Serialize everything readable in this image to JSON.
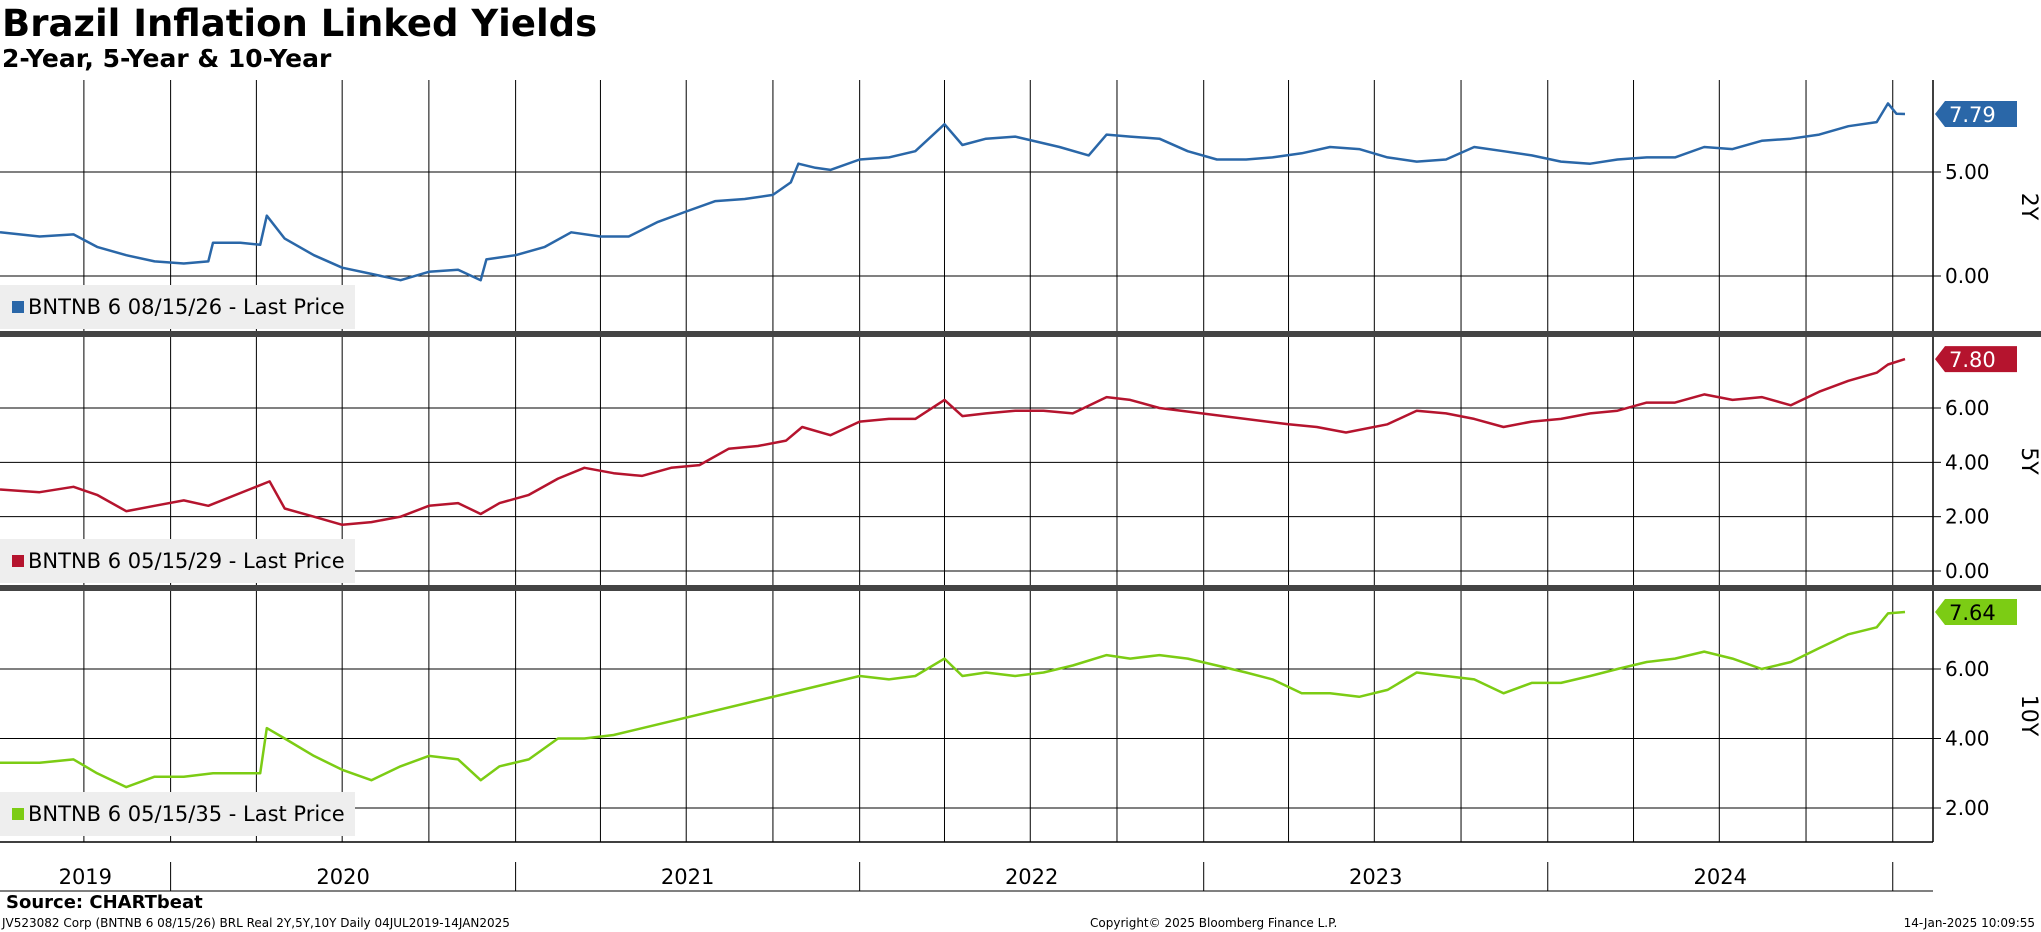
{
  "header": {
    "title": "Brazil Inflation Linked Yields",
    "subtitle": "2-Year, 5-Year & 10-Year"
  },
  "footer": {
    "source": "Source: CHARTbeat",
    "info": "JV523082 Corp (BNTNB 6 08/15/26) BRL Real 2Y,5Y,10Y  Daily 04JUL2019-14JAN2025",
    "copyright": "Copyright© 2025 Bloomberg Finance L.P.",
    "timestamp": "14-Jan-2025 10:09:55"
  },
  "colors": {
    "2Y": "#2a67a8",
    "5Y": "#b5142e",
    "10Y": "#7ccc14",
    "grid": "#000000",
    "legend_bg": "#eeeeee"
  },
  "chart_data": {
    "type": "line",
    "x_axis": {
      "years": [
        "2019",
        "2020",
        "2021",
        "2022",
        "2023",
        "2024"
      ],
      "range": [
        "2019-07-04",
        "2025-01-14"
      ]
    },
    "panels": [
      {
        "name": "2Y",
        "legend": "BNTNB 6 08/15/26 - Last Price",
        "last_value": "7.79",
        "y_ticks": [
          "0.00",
          "5.00"
        ],
        "series": [
          {
            "date": "2019-07-04",
            "value": 2.1
          },
          {
            "date": "2019-08-15",
            "value": 1.9
          },
          {
            "date": "2019-09-20",
            "value": 2.0
          },
          {
            "date": "2019-10-15",
            "value": 1.4
          },
          {
            "date": "2019-11-15",
            "value": 1.0
          },
          {
            "date": "2019-12-15",
            "value": 0.7
          },
          {
            "date": "2020-01-15",
            "value": 0.6
          },
          {
            "date": "2020-02-10",
            "value": 0.7
          },
          {
            "date": "2020-02-15",
            "value": 1.6
          },
          {
            "date": "2020-03-15",
            "value": 1.6
          },
          {
            "date": "2020-04-05",
            "value": 1.5
          },
          {
            "date": "2020-04-12",
            "value": 2.9
          },
          {
            "date": "2020-05-01",
            "value": 1.8
          },
          {
            "date": "2020-06-01",
            "value": 1.0
          },
          {
            "date": "2020-07-01",
            "value": 0.4
          },
          {
            "date": "2020-08-01",
            "value": 0.1
          },
          {
            "date": "2020-09-01",
            "value": -0.2
          },
          {
            "date": "2020-10-01",
            "value": 0.2
          },
          {
            "date": "2020-11-01",
            "value": 0.3
          },
          {
            "date": "2020-11-25",
            "value": -0.2
          },
          {
            "date": "2020-12-01",
            "value": 0.8
          },
          {
            "date": "2021-01-01",
            "value": 1.0
          },
          {
            "date": "2021-02-01",
            "value": 1.4
          },
          {
            "date": "2021-03-01",
            "value": 2.1
          },
          {
            "date": "2021-04-01",
            "value": 1.9
          },
          {
            "date": "2021-05-01",
            "value": 1.9
          },
          {
            "date": "2021-06-01",
            "value": 2.6
          },
          {
            "date": "2021-07-01",
            "value": 3.1
          },
          {
            "date": "2021-08-01",
            "value": 3.6
          },
          {
            "date": "2021-09-01",
            "value": 3.7
          },
          {
            "date": "2021-10-01",
            "value": 3.9
          },
          {
            "date": "2021-10-20",
            "value": 4.5
          },
          {
            "date": "2021-10-28",
            "value": 5.4
          },
          {
            "date": "2021-11-15",
            "value": 5.2
          },
          {
            "date": "2021-12-01",
            "value": 5.1
          },
          {
            "date": "2022-01-01",
            "value": 5.6
          },
          {
            "date": "2022-02-01",
            "value": 5.7
          },
          {
            "date": "2022-03-01",
            "value": 6.0
          },
          {
            "date": "2022-04-01",
            "value": 7.3
          },
          {
            "date": "2022-04-20",
            "value": 6.3
          },
          {
            "date": "2022-05-15",
            "value": 6.6
          },
          {
            "date": "2022-06-15",
            "value": 6.7
          },
          {
            "date": "2022-08-01",
            "value": 6.2
          },
          {
            "date": "2022-09-01",
            "value": 5.8
          },
          {
            "date": "2022-09-20",
            "value": 6.8
          },
          {
            "date": "2022-10-15",
            "value": 6.7
          },
          {
            "date": "2022-11-15",
            "value": 6.6
          },
          {
            "date": "2022-12-15",
            "value": 6.0
          },
          {
            "date": "2023-01-15",
            "value": 5.6
          },
          {
            "date": "2023-02-15",
            "value": 5.6
          },
          {
            "date": "2023-03-15",
            "value": 5.7
          },
          {
            "date": "2023-04-15",
            "value": 5.9
          },
          {
            "date": "2023-05-15",
            "value": 6.2
          },
          {
            "date": "2023-06-15",
            "value": 6.1
          },
          {
            "date": "2023-07-15",
            "value": 5.7
          },
          {
            "date": "2023-08-15",
            "value": 5.5
          },
          {
            "date": "2023-09-15",
            "value": 5.6
          },
          {
            "date": "2023-10-15",
            "value": 6.2
          },
          {
            "date": "2023-11-15",
            "value": 6.0
          },
          {
            "date": "2023-12-15",
            "value": 5.8
          },
          {
            "date": "2024-01-15",
            "value": 5.5
          },
          {
            "date": "2024-02-15",
            "value": 5.4
          },
          {
            "date": "2024-03-15",
            "value": 5.6
          },
          {
            "date": "2024-04-15",
            "value": 5.7
          },
          {
            "date": "2024-05-15",
            "value": 5.7
          },
          {
            "date": "2024-06-15",
            "value": 6.2
          },
          {
            "date": "2024-07-15",
            "value": 6.1
          },
          {
            "date": "2024-08-15",
            "value": 6.5
          },
          {
            "date": "2024-09-15",
            "value": 6.6
          },
          {
            "date": "2024-10-15",
            "value": 6.8
          },
          {
            "date": "2024-11-15",
            "value": 7.2
          },
          {
            "date": "2024-12-15",
            "value": 7.4
          },
          {
            "date": "2024-12-27",
            "value": 8.3
          },
          {
            "date": "2025-01-05",
            "value": 7.8
          },
          {
            "date": "2025-01-14",
            "value": 7.79
          }
        ]
      },
      {
        "name": "5Y",
        "legend": "BNTNB 6 05/15/29 - Last Price",
        "last_value": "7.80",
        "y_ticks": [
          "0.00",
          "2.00",
          "4.00",
          "6.00"
        ],
        "series": [
          {
            "date": "2019-07-04",
            "value": 3.0
          },
          {
            "date": "2019-08-15",
            "value": 2.9
          },
          {
            "date": "2019-09-20",
            "value": 3.1
          },
          {
            "date": "2019-10-15",
            "value": 2.8
          },
          {
            "date": "2019-11-15",
            "value": 2.2
          },
          {
            "date": "2019-12-15",
            "value": 2.4
          },
          {
            "date": "2020-01-15",
            "value": 2.6
          },
          {
            "date": "2020-02-10",
            "value": 2.4
          },
          {
            "date": "2020-04-15",
            "value": 3.3
          },
          {
            "date": "2020-05-01",
            "value": 2.3
          },
          {
            "date": "2020-06-01",
            "value": 2.0
          },
          {
            "date": "2020-07-01",
            "value": 1.7
          },
          {
            "date": "2020-08-01",
            "value": 1.8
          },
          {
            "date": "2020-09-01",
            "value": 2.0
          },
          {
            "date": "2020-10-01",
            "value": 2.4
          },
          {
            "date": "2020-11-01",
            "value": 2.5
          },
          {
            "date": "2020-11-25",
            "value": 2.1
          },
          {
            "date": "2020-12-15",
            "value": 2.5
          },
          {
            "date": "2021-01-15",
            "value": 2.8
          },
          {
            "date": "2021-02-15",
            "value": 3.4
          },
          {
            "date": "2021-03-15",
            "value": 3.8
          },
          {
            "date": "2021-04-15",
            "value": 3.6
          },
          {
            "date": "2021-05-15",
            "value": 3.5
          },
          {
            "date": "2021-06-15",
            "value": 3.8
          },
          {
            "date": "2021-07-15",
            "value": 3.9
          },
          {
            "date": "2021-08-15",
            "value": 4.5
          },
          {
            "date": "2021-09-15",
            "value": 4.6
          },
          {
            "date": "2021-10-15",
            "value": 4.8
          },
          {
            "date": "2021-11-01",
            "value": 5.3
          },
          {
            "date": "2021-12-01",
            "value": 5.0
          },
          {
            "date": "2022-01-01",
            "value": 5.5
          },
          {
            "date": "2022-02-01",
            "value": 5.6
          },
          {
            "date": "2022-03-01",
            "value": 5.6
          },
          {
            "date": "2022-04-01",
            "value": 6.3
          },
          {
            "date": "2022-04-20",
            "value": 5.7
          },
          {
            "date": "2022-05-15",
            "value": 5.8
          },
          {
            "date": "2022-06-15",
            "value": 5.9
          },
          {
            "date": "2022-07-15",
            "value": 5.9
          },
          {
            "date": "2022-08-15",
            "value": 5.8
          },
          {
            "date": "2022-09-20",
            "value": 6.4
          },
          {
            "date": "2022-10-15",
            "value": 6.3
          },
          {
            "date": "2022-11-15",
            "value": 6.0
          },
          {
            "date": "2023-04-01",
            "value": 5.4
          },
          {
            "date": "2023-05-01",
            "value": 5.3
          },
          {
            "date": "2023-06-01",
            "value": 5.1
          },
          {
            "date": "2023-07-15",
            "value": 5.4
          },
          {
            "date": "2023-08-15",
            "value": 5.9
          },
          {
            "date": "2023-09-15",
            "value": 5.8
          },
          {
            "date": "2023-10-15",
            "value": 5.6
          },
          {
            "date": "2023-11-15",
            "value": 5.3
          },
          {
            "date": "2023-12-15",
            "value": 5.5
          },
          {
            "date": "2024-01-15",
            "value": 5.6
          },
          {
            "date": "2024-02-15",
            "value": 5.8
          },
          {
            "date": "2024-03-15",
            "value": 5.9
          },
          {
            "date": "2024-04-15",
            "value": 6.2
          },
          {
            "date": "2024-05-15",
            "value": 6.2
          },
          {
            "date": "2024-06-15",
            "value": 6.5
          },
          {
            "date": "2024-07-15",
            "value": 6.3
          },
          {
            "date": "2024-08-15",
            "value": 6.4
          },
          {
            "date": "2024-09-15",
            "value": 6.1
          },
          {
            "date": "2024-10-15",
            "value": 6.6
          },
          {
            "date": "2024-11-15",
            "value": 7.0
          },
          {
            "date": "2024-12-15",
            "value": 7.3
          },
          {
            "date": "2024-12-27",
            "value": 7.6
          },
          {
            "date": "2025-01-14",
            "value": 7.8
          }
        ]
      },
      {
        "name": "10Y",
        "legend": "BNTNB 6 05/15/35 - Last Price",
        "last_value": "7.64",
        "y_ticks": [
          "2.00",
          "4.00",
          "6.00"
        ],
        "series": [
          {
            "date": "2019-07-04",
            "value": 3.3
          },
          {
            "date": "2019-08-15",
            "value": 3.3
          },
          {
            "date": "2019-09-20",
            "value": 3.4
          },
          {
            "date": "2019-10-15",
            "value": 3.0
          },
          {
            "date": "2019-11-15",
            "value": 2.6
          },
          {
            "date": "2019-12-15",
            "value": 2.9
          },
          {
            "date": "2020-01-15",
            "value": 2.9
          },
          {
            "date": "2020-02-15",
            "value": 3.0
          },
          {
            "date": "2020-03-15",
            "value": 3.0
          },
          {
            "date": "2020-04-05",
            "value": 3.0
          },
          {
            "date": "2020-04-12",
            "value": 4.3
          },
          {
            "date": "2020-05-01",
            "value": 4.0
          },
          {
            "date": "2020-06-01",
            "value": 3.5
          },
          {
            "date": "2020-07-01",
            "value": 3.1
          },
          {
            "date": "2020-08-01",
            "value": 2.8
          },
          {
            "date": "2020-09-01",
            "value": 3.2
          },
          {
            "date": "2020-10-01",
            "value": 3.5
          },
          {
            "date": "2020-11-01",
            "value": 3.4
          },
          {
            "date": "2020-11-25",
            "value": 2.8
          },
          {
            "date": "2020-12-15",
            "value": 3.2
          },
          {
            "date": "2021-01-15",
            "value": 3.4
          },
          {
            "date": "2021-02-15",
            "value": 4.0
          },
          {
            "date": "2021-03-15",
            "value": 4.0
          },
          {
            "date": "2021-04-15",
            "value": 4.1
          },
          {
            "date": "2022-01-01",
            "value": 5.8
          },
          {
            "date": "2022-02-01",
            "value": 5.7
          },
          {
            "date": "2022-03-01",
            "value": 5.8
          },
          {
            "date": "2022-04-01",
            "value": 6.3
          },
          {
            "date": "2022-04-20",
            "value": 5.8
          },
          {
            "date": "2022-05-15",
            "value": 5.9
          },
          {
            "date": "2022-06-15",
            "value": 5.8
          },
          {
            "date": "2022-07-15",
            "value": 5.9
          },
          {
            "date": "2022-08-15",
            "value": 6.1
          },
          {
            "date": "2022-09-20",
            "value": 6.4
          },
          {
            "date": "2022-10-15",
            "value": 6.3
          },
          {
            "date": "2022-11-15",
            "value": 6.4
          },
          {
            "date": "2022-12-15",
            "value": 6.3
          },
          {
            "date": "2023-01-15",
            "value": 6.1
          },
          {
            "date": "2023-02-15",
            "value": 5.9
          },
          {
            "date": "2023-03-15",
            "value": 5.7
          },
          {
            "date": "2023-04-15",
            "value": 5.3
          },
          {
            "date": "2023-05-15",
            "value": 5.3
          },
          {
            "date": "2023-06-15",
            "value": 5.2
          },
          {
            "date": "2023-07-15",
            "value": 5.4
          },
          {
            "date": "2023-08-15",
            "value": 5.9
          },
          {
            "date": "2023-09-15",
            "value": 5.8
          },
          {
            "date": "2023-10-15",
            "value": 5.7
          },
          {
            "date": "2023-11-15",
            "value": 5.3
          },
          {
            "date": "2023-12-15",
            "value": 5.6
          },
          {
            "date": "2024-01-15",
            "value": 5.6
          },
          {
            "date": "2024-02-15",
            "value": 5.8
          },
          {
            "date": "2024-03-15",
            "value": 6.0
          },
          {
            "date": "2024-04-15",
            "value": 6.2
          },
          {
            "date": "2024-05-15",
            "value": 6.3
          },
          {
            "date": "2024-06-15",
            "value": 6.5
          },
          {
            "date": "2024-07-15",
            "value": 6.3
          },
          {
            "date": "2024-08-15",
            "value": 6.0
          },
          {
            "date": "2024-09-15",
            "value": 6.2
          },
          {
            "date": "2024-10-15",
            "value": 6.6
          },
          {
            "date": "2024-11-15",
            "value": 7.0
          },
          {
            "date": "2024-12-15",
            "value": 7.2
          },
          {
            "date": "2024-12-27",
            "value": 7.6
          },
          {
            "date": "2025-01-14",
            "value": 7.64
          }
        ]
      }
    ]
  }
}
